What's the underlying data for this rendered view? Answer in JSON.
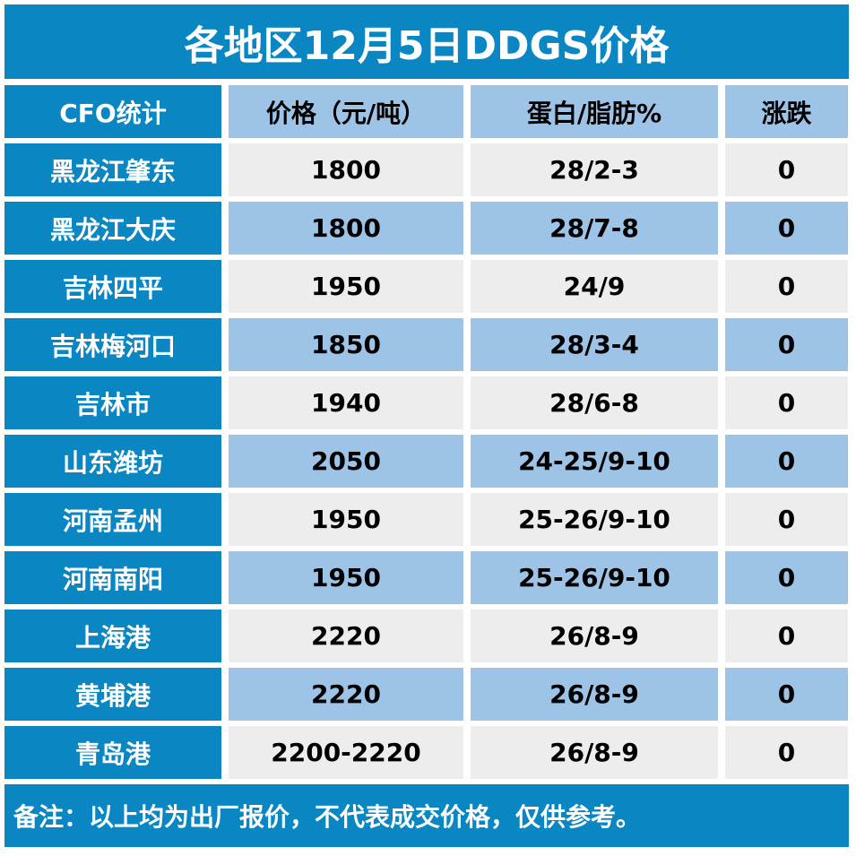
{
  "title": "各地区12月5日DDGS价格",
  "headers": [
    "CFO统计",
    "价格（元/吨）",
    "蛋白/脂肪%",
    "涨跌"
  ],
  "rows": [
    {
      "region": "黑龙江肇东",
      "price": "1800",
      "protein_fat": "28/2-3",
      "change": "0"
    },
    {
      "region": "黑龙江大庆",
      "price": "1800",
      "protein_fat": "28/7-8",
      "change": "0"
    },
    {
      "region": "吉林四平",
      "price": "1950",
      "protein_fat": "24/9",
      "change": "0"
    },
    {
      "region": "吉林梅河口",
      "price": "1850",
      "protein_fat": "28/3-4",
      "change": "0"
    },
    {
      "region": "吉林市",
      "price": "1940",
      "protein_fat": "28/6-8",
      "change": "0"
    },
    {
      "region": "山东潍坊",
      "price": "2050",
      "protein_fat": "24-25/9-10",
      "change": "0"
    },
    {
      "region": "河南孟州",
      "price": "1950",
      "protein_fat": "25-26/9-10",
      "change": "0"
    },
    {
      "region": "河南南阳",
      "price": "1950",
      "protein_fat": "25-26/9-10",
      "change": "0"
    },
    {
      "region": "上海港",
      "price": "2220",
      "protein_fat": "26/8-9",
      "change": "0"
    },
    {
      "region": "黄埔港",
      "price": "2220",
      "protein_fat": "26/8-9",
      "change": "0"
    },
    {
      "region": "青岛港",
      "price": "2200-2220",
      "protein_fat": "26/8-9",
      "change": "0"
    }
  ],
  "footnote": "备注：以上均为出厂报价，不代表成交价格，仅供参考。",
  "colors": {
    "header_blue": "#0a86c2",
    "light_blue": "#9dc3e6",
    "light_gray": "#ededed"
  }
}
